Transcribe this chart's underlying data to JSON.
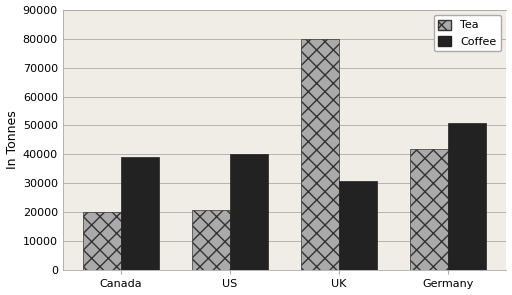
{
  "categories": [
    "Canada",
    "US",
    "UK",
    "Germany"
  ],
  "tea_values": [
    20000,
    21000,
    80000,
    42000
  ],
  "coffee_values": [
    39000,
    40000,
    31000,
    51000
  ],
  "tea_color": "#aaaaaa",
  "tea_hatch": "xx",
  "coffee_color": "#222222",
  "coffee_hatch": "",
  "ylabel": "In Tonnes",
  "ylim": [
    0,
    90000
  ],
  "yticks": [
    0,
    10000,
    20000,
    30000,
    40000,
    50000,
    60000,
    70000,
    80000,
    90000
  ],
  "legend_labels": [
    "Tea",
    "Coffee"
  ],
  "bar_width": 0.35,
  "background_color": "#ffffff",
  "plot_bg_color": "#f0ede6",
  "axis_fontsize": 9,
  "tick_fontsize": 8,
  "grid_color": "#aaaaaa",
  "legend_fontsize": 8
}
